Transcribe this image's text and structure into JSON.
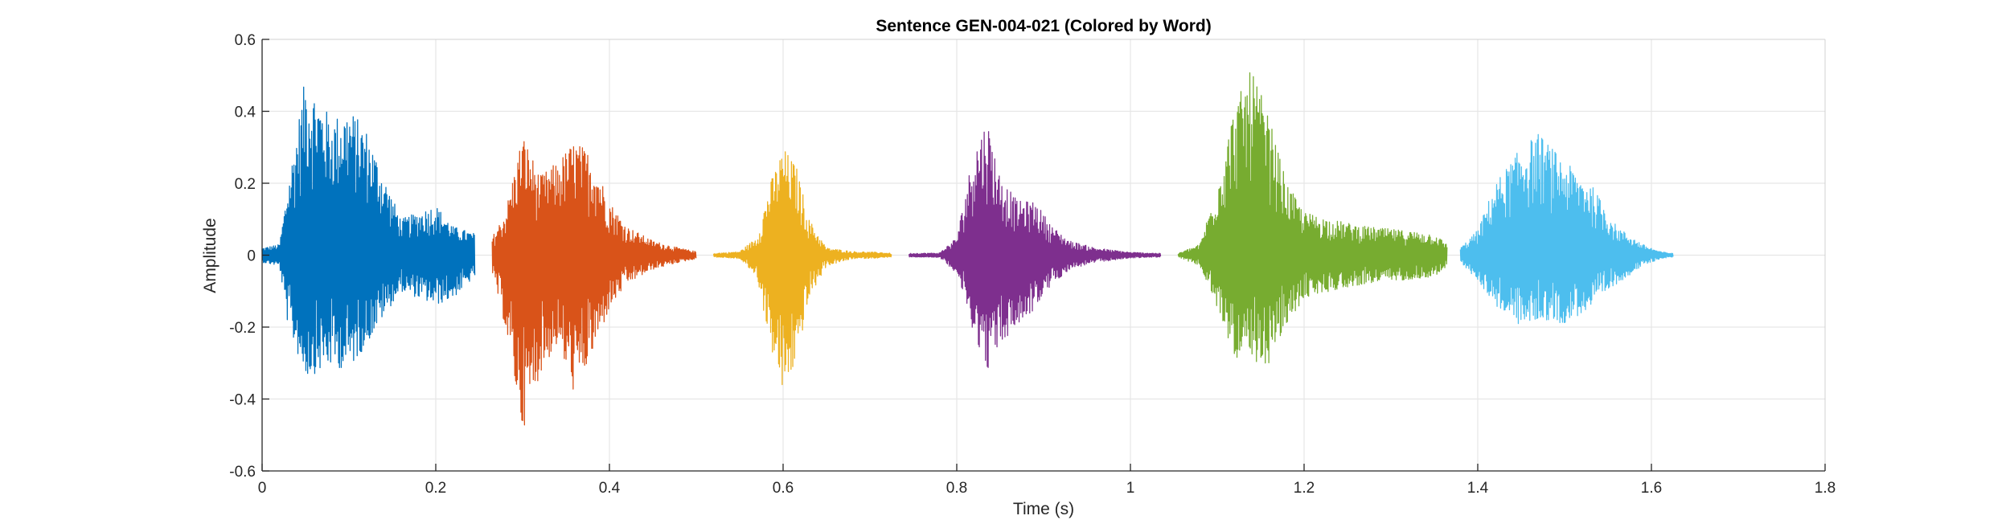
{
  "chart_data": {
    "type": "line",
    "title": "Sentence GEN-004-021 (Colored by Word)",
    "xlabel": "Time (s)",
    "ylabel": "Amplitude",
    "xlim": [
      0,
      1.8
    ],
    "ylim": [
      -0.6,
      0.6
    ],
    "xticks": [
      0,
      0.2,
      0.4,
      0.6,
      0.8,
      1,
      1.2,
      1.4,
      1.6,
      1.8
    ],
    "xtick_labels": [
      "0",
      "0.2",
      "0.4",
      "0.6",
      "0.8",
      "1",
      "1.2",
      "1.4",
      "1.6",
      "1.8"
    ],
    "yticks": [
      -0.6,
      -0.4,
      -0.2,
      0,
      0.2,
      0.4,
      0.6
    ],
    "ytick_labels": [
      "-0.6",
      "-0.4",
      "-0.2",
      "0",
      "0.2",
      "0.4",
      "0.6"
    ],
    "grid": true,
    "series": [
      {
        "color": "#0072BD",
        "start": 0.0,
        "end": 0.245,
        "envelope": {
          "t": [
            0.0,
            0.02,
            0.03,
            0.05,
            0.08,
            0.1,
            0.12,
            0.14,
            0.16,
            0.18,
            0.2,
            0.22,
            0.245
          ],
          "max": [
            0.02,
            0.03,
            0.2,
            0.5,
            0.38,
            0.41,
            0.35,
            0.22,
            0.1,
            0.12,
            0.14,
            0.08,
            0.06
          ],
          "min": [
            -0.02,
            -0.03,
            -0.2,
            -0.34,
            -0.31,
            -0.32,
            -0.25,
            -0.17,
            -0.1,
            -0.12,
            -0.14,
            -0.12,
            -0.06
          ]
        }
      },
      {
        "color": "#D95319",
        "start": 0.265,
        "end": 0.5,
        "envelope": {
          "t": [
            0.265,
            0.28,
            0.3,
            0.32,
            0.34,
            0.36,
            0.38,
            0.4,
            0.42,
            0.45,
            0.48,
            0.5
          ],
          "max": [
            0.05,
            0.12,
            0.34,
            0.22,
            0.26,
            0.32,
            0.28,
            0.15,
            0.08,
            0.04,
            0.02,
            0.01
          ],
          "min": [
            -0.05,
            -0.2,
            -0.49,
            -0.33,
            -0.25,
            -0.39,
            -0.28,
            -0.15,
            -0.08,
            -0.04,
            -0.02,
            -0.01
          ]
        }
      },
      {
        "color": "#EDB120",
        "start": 0.52,
        "end": 0.725,
        "envelope": {
          "t": [
            0.52,
            0.55,
            0.57,
            0.585,
            0.6,
            0.615,
            0.63,
            0.65,
            0.68,
            0.71,
            0.725
          ],
          "max": [
            0.005,
            0.01,
            0.05,
            0.2,
            0.3,
            0.25,
            0.1,
            0.02,
            0.01,
            0.008,
            0.005
          ],
          "min": [
            -0.005,
            -0.01,
            -0.06,
            -0.25,
            -0.39,
            -0.3,
            -0.12,
            -0.03,
            -0.01,
            -0.008,
            -0.005
          ]
        }
      },
      {
        "color": "#7E2F8E",
        "start": 0.745,
        "end": 1.035,
        "envelope": {
          "t": [
            0.745,
            0.78,
            0.8,
            0.82,
            0.835,
            0.85,
            0.87,
            0.89,
            0.91,
            0.93,
            0.96,
            1.0,
            1.035
          ],
          "max": [
            0.005,
            0.006,
            0.05,
            0.3,
            0.38,
            0.22,
            0.15,
            0.15,
            0.08,
            0.04,
            0.02,
            0.008,
            0.005
          ],
          "min": [
            -0.005,
            -0.006,
            -0.05,
            -0.22,
            -0.32,
            -0.25,
            -0.2,
            -0.15,
            -0.08,
            -0.04,
            -0.02,
            -0.008,
            -0.005
          ]
        }
      },
      {
        "color": "#77AC30",
        "start": 1.055,
        "end": 1.365,
        "envelope": {
          "t": [
            1.055,
            1.08,
            1.1,
            1.12,
            1.14,
            1.16,
            1.18,
            1.2,
            1.23,
            1.27,
            1.31,
            1.35,
            1.365
          ],
          "max": [
            0.005,
            0.03,
            0.2,
            0.42,
            0.52,
            0.38,
            0.2,
            0.12,
            0.1,
            0.08,
            0.07,
            0.06,
            0.03
          ],
          "min": [
            -0.005,
            -0.03,
            -0.15,
            -0.28,
            -0.33,
            -0.3,
            -0.2,
            -0.12,
            -0.1,
            -0.08,
            -0.07,
            -0.06,
            -0.03
          ]
        }
      },
      {
        "color": "#4DBEEE",
        "start": 1.38,
        "end": 1.625,
        "envelope": {
          "t": [
            1.38,
            1.4,
            1.42,
            1.45,
            1.47,
            1.5,
            1.53,
            1.56,
            1.59,
            1.61,
            1.625
          ],
          "max": [
            0.02,
            0.07,
            0.2,
            0.3,
            0.34,
            0.26,
            0.2,
            0.08,
            0.03,
            0.01,
            0.005
          ],
          "min": [
            -0.02,
            -0.07,
            -0.14,
            -0.2,
            -0.18,
            -0.19,
            -0.15,
            -0.08,
            -0.03,
            -0.01,
            -0.005
          ]
        }
      }
    ]
  }
}
